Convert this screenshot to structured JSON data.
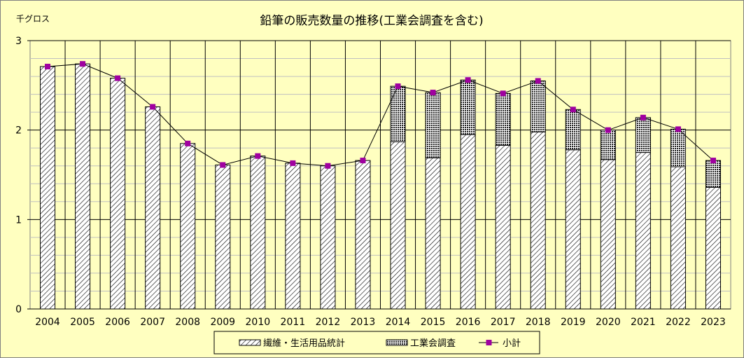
{
  "chart_data": {
    "type": "bar",
    "stacked": true,
    "title": "鉛筆の販売数量の推移(工業会調査を含む)",
    "unit_label": "千グロス",
    "categories": [
      "2004",
      "2005",
      "2006",
      "2007",
      "2008",
      "2009",
      "2010",
      "2011",
      "2012",
      "2013",
      "2014",
      "2015",
      "2016",
      "2017",
      "2018",
      "2019",
      "2020",
      "2021",
      "2022",
      "2023"
    ],
    "series": [
      {
        "name": "繊維・生活用品統計",
        "kind": "bar",
        "pattern": "diagonal-hatch",
        "values": [
          2.71,
          2.74,
          2.58,
          2.26,
          1.85,
          1.61,
          1.71,
          1.63,
          1.6,
          1.66,
          1.87,
          1.69,
          1.95,
          1.83,
          1.98,
          1.78,
          1.67,
          1.75,
          1.59,
          1.36
        ]
      },
      {
        "name": "工業会調査",
        "kind": "bar",
        "pattern": "crosshatch",
        "values": [
          0,
          0,
          0,
          0,
          0,
          0,
          0,
          0,
          0,
          0,
          0.62,
          0.73,
          0.61,
          0.58,
          0.57,
          0.45,
          0.33,
          0.39,
          0.42,
          0.3
        ]
      },
      {
        "name": "小計",
        "kind": "line",
        "color": "#a000a0",
        "values": [
          2.71,
          2.74,
          2.58,
          2.26,
          1.85,
          1.61,
          1.71,
          1.63,
          1.6,
          1.66,
          2.49,
          2.42,
          2.56,
          2.41,
          2.55,
          2.23,
          2.0,
          2.14,
          2.01,
          1.66
        ]
      }
    ],
    "ylim": [
      0,
      3
    ],
    "yticks": [
      "0",
      "1",
      "2",
      "3"
    ],
    "grid": true,
    "legend_position": "bottom"
  }
}
